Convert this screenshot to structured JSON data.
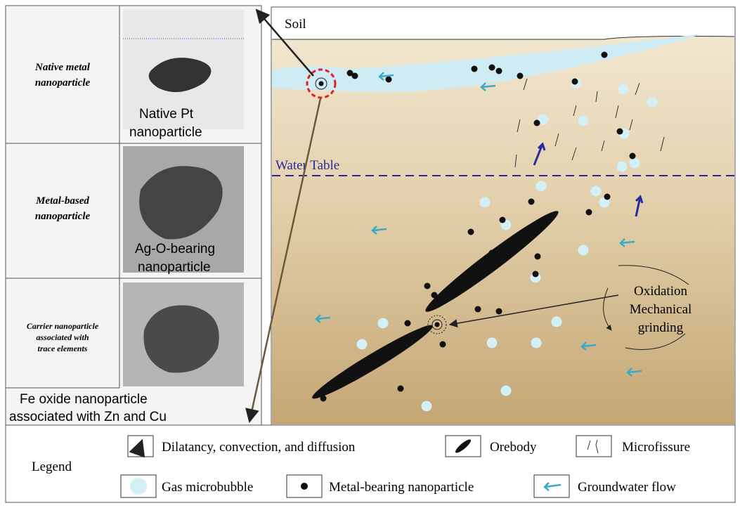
{
  "panels": [
    {
      "label": [
        "Native metal",
        "nanoparticle"
      ],
      "caption": [
        "Native Pt",
        "nanoparticle"
      ]
    },
    {
      "label": [
        "Metal-based",
        "nanoparticle"
      ],
      "caption": [
        "Ag-O-bearing",
        "nanoparticle"
      ]
    },
    {
      "label": [
        "Carrier nanoparticle",
        "associated with",
        "trace elements"
      ],
      "caption": [
        "Fe oxide nanoparticle",
        "associated with Zn and Cu"
      ]
    }
  ],
  "diagram": {
    "soil": "Soil",
    "water_table": "Water Table",
    "process": [
      "Oxidation",
      "Mechanical",
      "grinding"
    ]
  },
  "legend": {
    "title": "Legend",
    "items": [
      "Dilatancy, convection, and diffusion",
      "Orebody",
      "Microfissure",
      "Gas microbubble",
      "Metal-bearing nanoparticle",
      "Groundwater flow"
    ]
  }
}
